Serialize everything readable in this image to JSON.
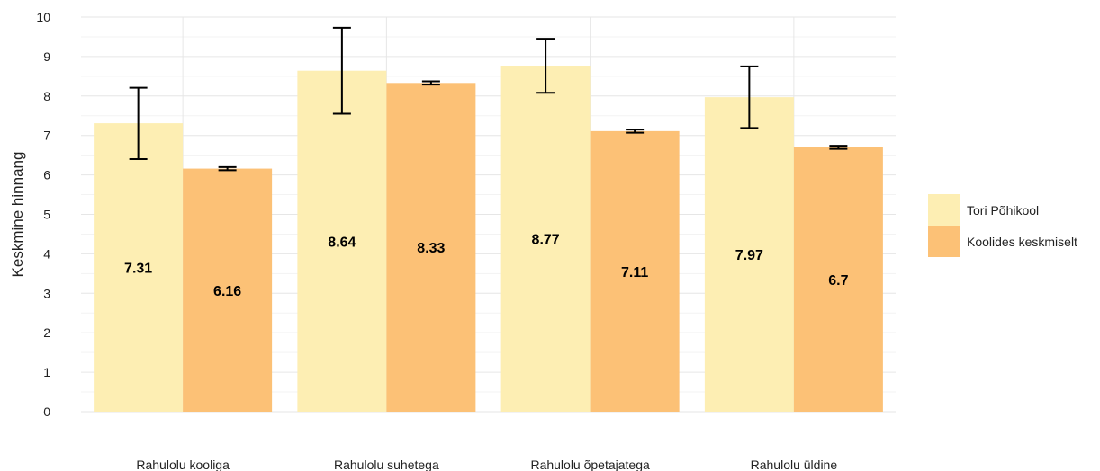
{
  "chart_data": {
    "type": "bar",
    "title": "",
    "xlabel": "",
    "ylabel": "Keskmine hinnang",
    "ylim": [
      0,
      10
    ],
    "yticks": [
      0,
      1,
      2,
      3,
      4,
      5,
      6,
      7,
      8,
      9,
      10
    ],
    "grid": true,
    "legend_position": "right",
    "categories": [
      "Rahulolu kooliga",
      "Rahulolu suhetega",
      "Rahulolu õpetajatega",
      "Rahulolu üldine"
    ],
    "series": [
      {
        "name": "Tori Põhikool",
        "color": "#FDEEB3",
        "values": [
          7.31,
          8.64,
          8.77,
          7.97
        ],
        "labels": [
          "7.31",
          "8.64",
          "8.77",
          "7.97"
        ],
        "error_low": [
          6.4,
          7.55,
          8.08,
          7.19
        ],
        "error_high": [
          8.21,
          9.73,
          9.45,
          8.75
        ]
      },
      {
        "name": "Koolides keskmiselt",
        "color": "#FCC176",
        "values": [
          6.16,
          8.33,
          7.11,
          6.7
        ],
        "labels": [
          "6.16",
          "8.33",
          "7.11",
          "6.7"
        ],
        "error_low": [
          6.12,
          8.29,
          7.07,
          6.66
        ],
        "error_high": [
          6.2,
          8.37,
          7.15,
          6.74
        ]
      }
    ]
  }
}
